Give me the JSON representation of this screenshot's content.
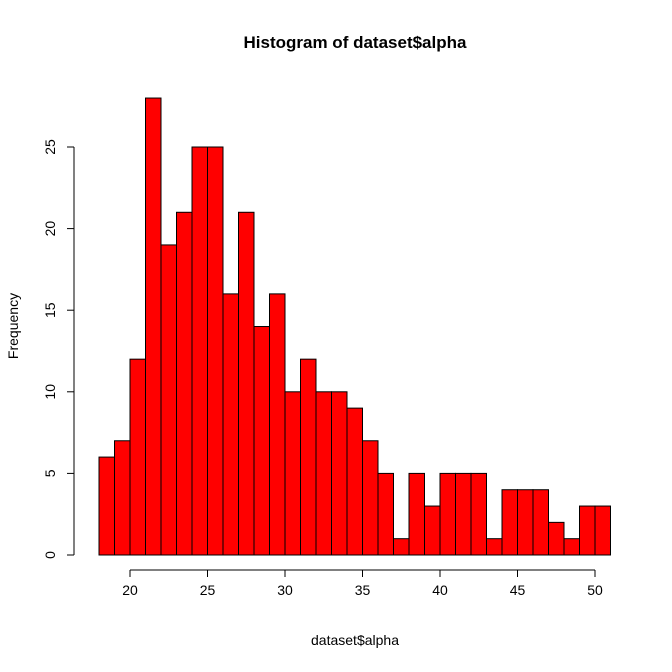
{
  "chart_data": {
    "type": "bar",
    "title": "Histogram of dataset$alpha",
    "xlabel": "dataset$alpha",
    "ylabel": "Frequency",
    "bin_start": 18,
    "bin_width": 1,
    "values": [
      6,
      7,
      12,
      28,
      19,
      21,
      25,
      25,
      16,
      21,
      14,
      16,
      10,
      12,
      10,
      10,
      9,
      7,
      5,
      1,
      5,
      3,
      5,
      5,
      5,
      1,
      4,
      4,
      4,
      2,
      1,
      3,
      3
    ],
    "xlim": [
      18,
      51
    ],
    "ylim": [
      0,
      28
    ],
    "x_ticks": [
      20,
      25,
      30,
      35,
      40,
      45,
      50
    ],
    "y_ticks": [
      0,
      5,
      10,
      15,
      20,
      25
    ],
    "bar_color": "#ff0000",
    "edge_color": "#000000",
    "grid": false
  }
}
